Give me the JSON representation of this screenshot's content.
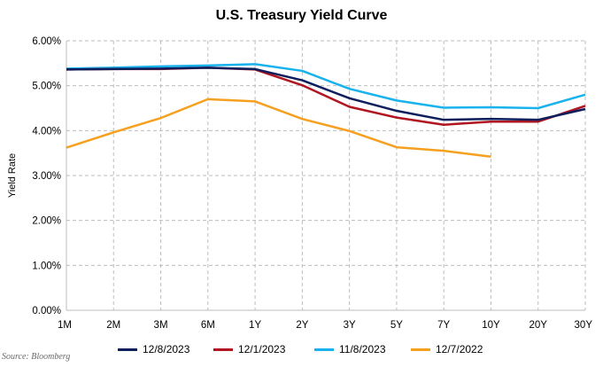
{
  "chart_data": {
    "type": "line",
    "title": "U.S. Treasury Yield Curve",
    "xlabel": "",
    "ylabel": "Yield Rate",
    "categories": [
      "1M",
      "2M",
      "3M",
      "6M",
      "1Y",
      "2Y",
      "3Y",
      "5Y",
      "7Y",
      "10Y",
      "20Y",
      "30Y"
    ],
    "ylim": [
      0,
      6
    ],
    "yticks": [
      "0.00%",
      "1.00%",
      "2.00%",
      "3.00%",
      "4.00%",
      "5.00%",
      "6.00%"
    ],
    "grid": "dashed",
    "legend_position": "bottom",
    "series": [
      {
        "name": "12/8/2023",
        "color": "#0c1f5c",
        "values": [
          5.36,
          5.37,
          5.38,
          5.4,
          5.37,
          5.12,
          4.72,
          4.44,
          4.24,
          4.26,
          4.24,
          4.48
        ]
      },
      {
        "name": "12/1/2023",
        "color": "#b01520",
        "values": [
          5.36,
          5.37,
          5.37,
          5.4,
          5.36,
          5.01,
          4.53,
          4.29,
          4.13,
          4.2,
          4.2,
          4.55
        ]
      },
      {
        "name": "11/8/2023",
        "color": "#18b2ec",
        "values": [
          5.38,
          5.4,
          5.43,
          5.45,
          5.48,
          5.33,
          4.93,
          4.67,
          4.51,
          4.52,
          4.5,
          4.8
        ]
      },
      {
        "name": "12/7/2022",
        "color": "#f6a01f",
        "values": [
          3.62,
          3.96,
          4.28,
          4.7,
          4.65,
          4.26,
          3.99,
          3.63,
          3.55,
          3.42,
          null,
          null
        ]
      }
    ]
  },
  "source": "Source: Bloomberg"
}
